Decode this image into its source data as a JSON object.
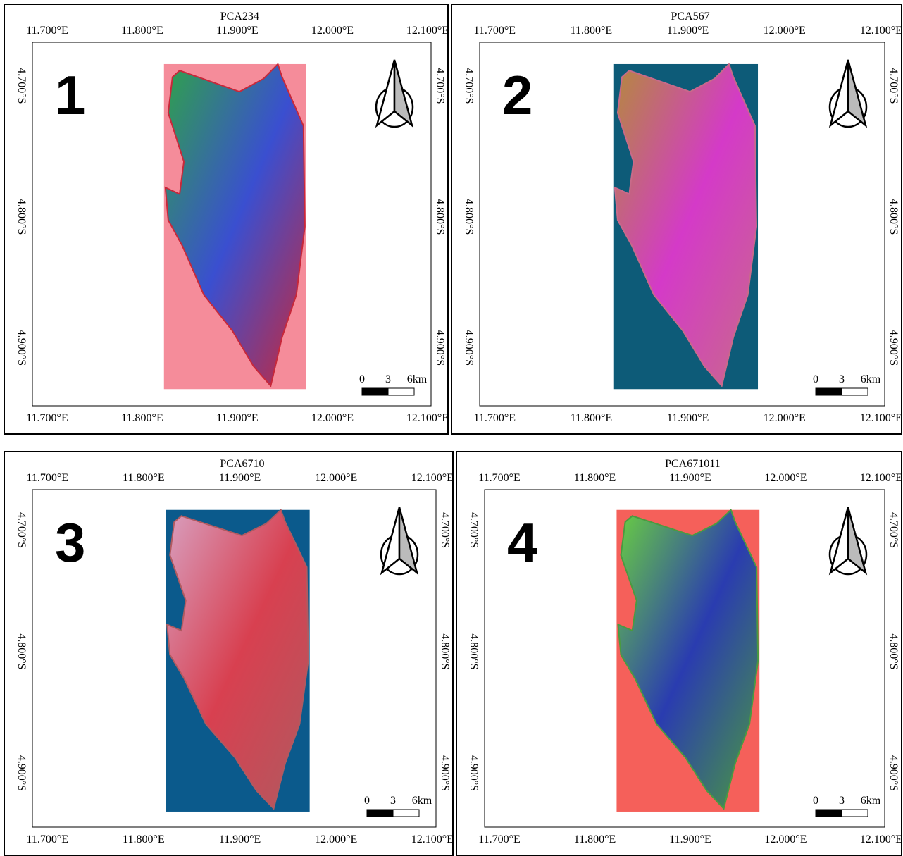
{
  "panels": [
    {
      "number": "1",
      "title": "PCA234",
      "background": "#f58c9a",
      "land_colors": [
        "#2fa24a",
        "#3a4fd0",
        "#c8283a"
      ]
    },
    {
      "number": "2",
      "title": "PCA567",
      "background": "#0d5b78",
      "land_colors": [
        "#b48a3c",
        "#d43ac8",
        "#c86a8a"
      ]
    },
    {
      "number": "3",
      "title": "PCA6710",
      "background": "#0b5a8c",
      "land_colors": [
        "#d8a0c0",
        "#d84050",
        "#b05a60"
      ]
    },
    {
      "number": "4",
      "title": "PCA671011",
      "background": "#f5605a",
      "land_colors": [
        "#6ad040",
        "#2a3cb0",
        "#4a9a40"
      ]
    }
  ],
  "lon_labels": [
    "11.700°E",
    "11.800°E",
    "11.900°E",
    "12.000°E",
    "12.100°E"
  ],
  "lat_labels": [
    "4.700°S",
    "4.800°S",
    "4.900°S"
  ],
  "scale_labels": [
    "0",
    "3",
    "6km"
  ]
}
